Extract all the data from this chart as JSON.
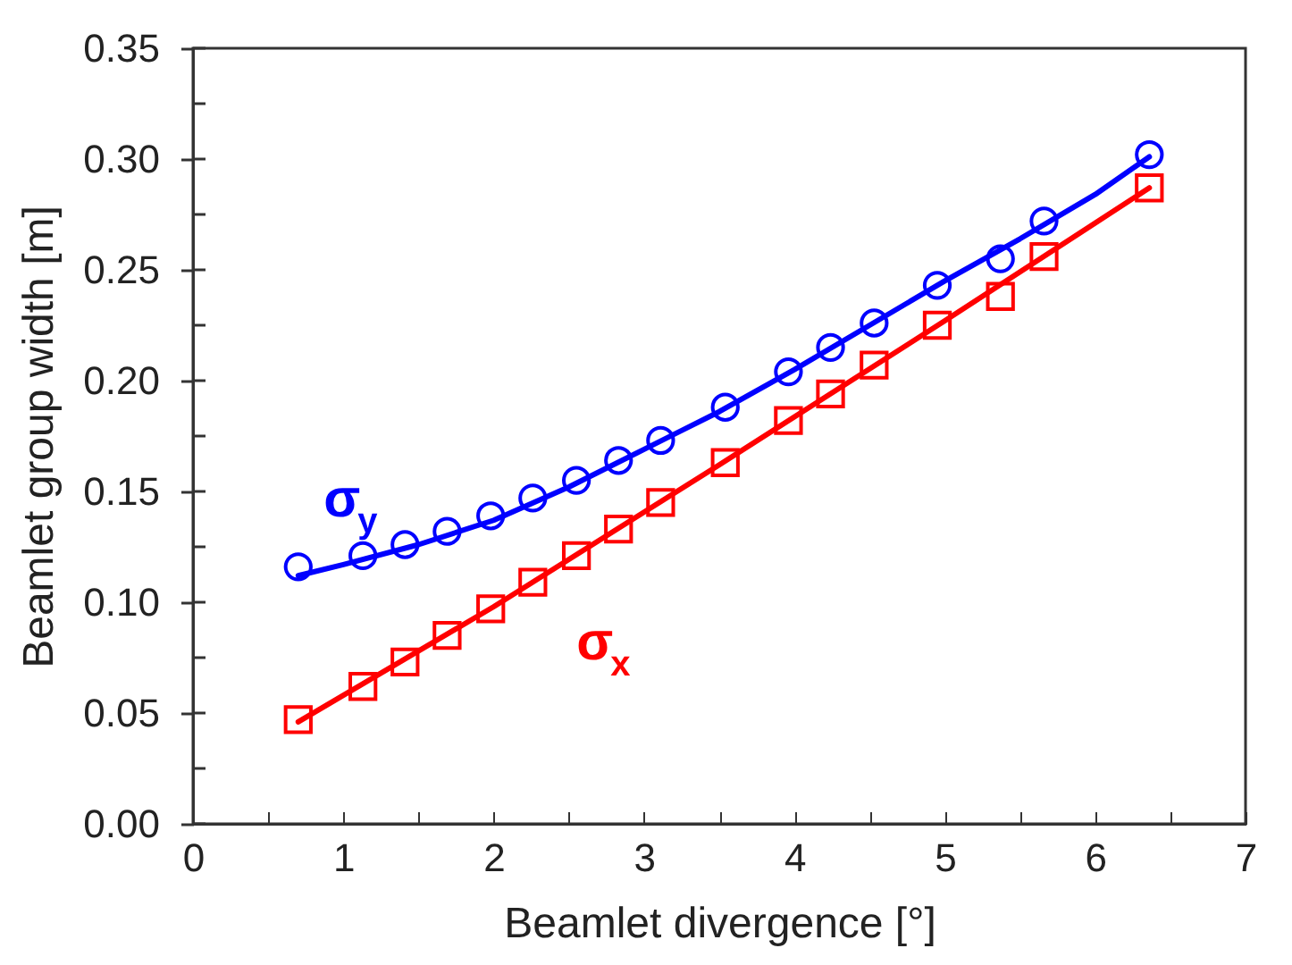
{
  "chart_data": {
    "type": "scatter",
    "xlabel": "Beamlet divergence [°]",
    "ylabel": "Beamlet group width [m]",
    "xlim": [
      0,
      7
    ],
    "ylim": [
      0,
      0.35
    ],
    "xticks": [
      0,
      {
        "value": 0.5,
        "label": null
      },
      1,
      {
        "value": 1.5,
        "label": null
      },
      2,
      {
        "value": 2.5,
        "label": null
      },
      3,
      {
        "value": 3.5,
        "label": null
      },
      4,
      {
        "value": 4.5,
        "label": null
      },
      5,
      {
        "value": 5.5,
        "label": null
      },
      6,
      {
        "value": 6.5,
        "label": null
      },
      7
    ],
    "yticks": [
      {
        "value": 0,
        "label": "0.00"
      },
      {
        "value": 0.025,
        "label": null
      },
      {
        "value": 0.05,
        "label": "0.05"
      },
      {
        "value": 0.075,
        "label": null
      },
      {
        "value": 0.1,
        "label": "0.10"
      },
      {
        "value": 0.125,
        "label": null
      },
      {
        "value": 0.15,
        "label": "0.15"
      },
      {
        "value": 0.175,
        "label": null
      },
      {
        "value": 0.2,
        "label": "0.20"
      },
      {
        "value": 0.225,
        "label": null
      },
      {
        "value": 0.25,
        "label": "0.25"
      },
      {
        "value": 0.275,
        "label": null
      },
      {
        "value": 0.3,
        "label": "0.30"
      },
      {
        "value": 0.325,
        "label": null
      },
      {
        "value": 0.35,
        "label": "0.35"
      }
    ],
    "grid": false,
    "x": [
      0.7,
      1.13,
      1.41,
      1.69,
      1.98,
      2.26,
      2.55,
      2.83,
      3.11,
      3.54,
      3.96,
      4.24,
      4.53,
      4.95,
      5.37,
      5.66,
      6.36
    ],
    "series": [
      {
        "name": "σ$_{y}$",
        "color": "#0000ff",
        "marker": "circle",
        "values": [
          0.116,
          0.121,
          0.126,
          0.132,
          0.139,
          0.147,
          0.155,
          0.164,
          0.173,
          0.188,
          0.204,
          0.215,
          0.226,
          0.243,
          0.255,
          0.272,
          0.302
        ]
      },
      {
        "name": "σ$_{x}$",
        "color": "#ff0000",
        "marker": "square",
        "values": [
          0.047,
          0.062,
          0.073,
          0.085,
          0.097,
          0.109,
          0.121,
          0.133,
          0.145,
          0.163,
          0.182,
          0.194,
          0.207,
          0.225,
          0.238,
          0.256,
          0.287
        ]
      },
      {
        "type": "line",
        "color": "#0000ff",
        "x": [
          0.7,
          1.0,
          1.5,
          2.0,
          2.5,
          3.0,
          3.5,
          4.0,
          4.5,
          5.0,
          5.5,
          6.0,
          6.36
        ],
        "values": [
          0.112,
          0.117,
          0.126,
          0.137,
          0.152,
          0.169,
          0.186,
          0.205,
          0.225,
          0.245,
          0.264,
          0.284,
          0.301
        ]
      },
      {
        "type": "line",
        "color": "#ff0000",
        "x": [
          0.7,
          2.0,
          3.5,
          5.0,
          6.36
        ],
        "values": [
          0.046,
          0.098,
          0.162,
          0.227,
          0.287
        ]
      }
    ]
  }
}
